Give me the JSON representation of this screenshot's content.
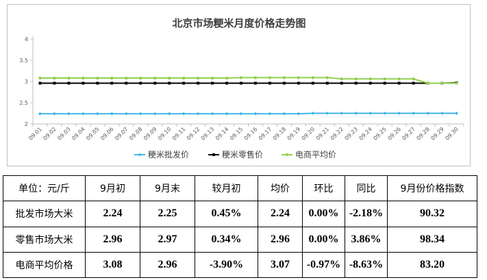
{
  "chart_data": {
    "type": "line",
    "title": "北京市场粳米月度价格走势图",
    "categories": [
      "09.01",
      "09.02",
      "09.03",
      "09.04",
      "09.05",
      "09.06",
      "09.07",
      "09.08",
      "09.09",
      "09.10",
      "09.11",
      "09.12",
      "09.13",
      "09.14",
      "09.15",
      "09.16",
      "09.17",
      "09.18",
      "09.19",
      "09.20",
      "09.21",
      "09.22",
      "09.23",
      "09.24",
      "09.25",
      "09.26",
      "09.27",
      "09.28",
      "09.29",
      "09.30"
    ],
    "y_ticks": [
      "2",
      "2.5",
      "3",
      "3.5",
      "4"
    ],
    "ylim": [
      2,
      4
    ],
    "legend_position": "bottom",
    "grid": false,
    "series": [
      {
        "name": "粳米批发价",
        "color": "#3eb6e8",
        "marker": "diamond",
        "values": [
          2.24,
          2.24,
          2.24,
          2.24,
          2.24,
          2.24,
          2.24,
          2.24,
          2.24,
          2.24,
          2.24,
          2.24,
          2.24,
          2.24,
          2.24,
          2.24,
          2.24,
          2.24,
          2.24,
          2.25,
          2.25,
          2.25,
          2.25,
          2.25,
          2.25,
          2.25,
          2.25,
          2.25,
          2.25,
          2.25
        ]
      },
      {
        "name": "粳米零售价",
        "color": "#000000",
        "marker": "square",
        "values": [
          2.96,
          2.96,
          2.96,
          2.96,
          2.96,
          2.96,
          2.96,
          2.96,
          2.96,
          2.96,
          2.96,
          2.96,
          2.96,
          2.96,
          2.96,
          2.96,
          2.96,
          2.96,
          2.96,
          2.96,
          2.96,
          2.96,
          2.96,
          2.96,
          2.96,
          2.96,
          2.96,
          2.96,
          2.96,
          2.97
        ]
      },
      {
        "name": "电商平均价",
        "color": "#92d050",
        "marker": "circle",
        "values": [
          3.08,
          3.08,
          3.08,
          3.08,
          3.08,
          3.08,
          3.08,
          3.08,
          3.08,
          3.08,
          3.08,
          3.08,
          3.08,
          3.08,
          3.09,
          3.09,
          3.09,
          3.09,
          3.09,
          3.09,
          3.09,
          3.06,
          3.06,
          3.06,
          3.06,
          3.06,
          3.06,
          2.96,
          2.96,
          2.96
        ]
      }
    ]
  },
  "table": {
    "headers": [
      "单位：元/斤",
      "9月初",
      "9月末",
      "较月初",
      "均价",
      "环比",
      "同比",
      "9月份价格指数"
    ],
    "rows": [
      [
        "批发市场大米",
        "2.24",
        "2.25",
        "0.45%",
        "2.24",
        "0.00%",
        "-2.18%",
        "90.32"
      ],
      [
        "零售市场大米",
        "2.96",
        "2.97",
        "0.34%",
        "2.96",
        "0.00%",
        "3.86%",
        "98.34"
      ],
      [
        "电商平均价格",
        "3.08",
        "2.96",
        "-3.90%",
        "3.07",
        "-0.97%",
        "-8.63%",
        "83.20"
      ]
    ]
  }
}
